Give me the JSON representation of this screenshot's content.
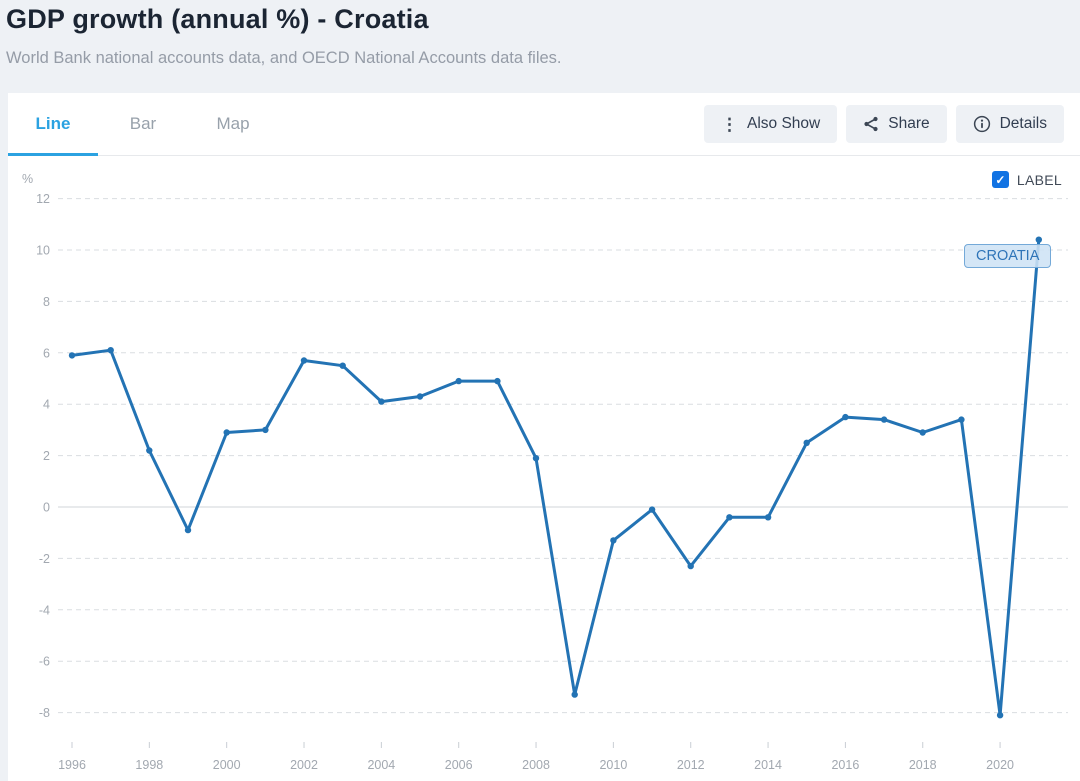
{
  "header": {
    "title": "GDP growth (annual %) - Croatia",
    "subtitle": "World Bank national accounts data, and OECD National Accounts data files."
  },
  "tabs": [
    {
      "label": "Line",
      "active": true
    },
    {
      "label": "Bar",
      "active": false
    },
    {
      "label": "Map",
      "active": false
    }
  ],
  "toolbar": {
    "also_show": "Also Show",
    "share": "Share",
    "details": "Details",
    "icons": {
      "also_show": "kebab-vertical-icon",
      "share": "share-nodes-icon",
      "details": "info-circle-icon"
    }
  },
  "legend": {
    "label": "LABEL",
    "checked": true,
    "check_icon": "checkmark"
  },
  "annotation": {
    "label": "CROATIA"
  },
  "colors": {
    "page_background": "#eef1f5",
    "card_background": "#ffffff",
    "tab_accent": "#2ba2e1",
    "button_background": "#eef1f5",
    "line": "#2373b4",
    "checkbox": "#1173e3",
    "annotation_fill": "#cee3f5",
    "annotation_border": "#74a9d8",
    "annotation_text": "#2e74b8",
    "grid": "#dadde1",
    "zero_line": "#d0d5da",
    "axis_text": "#a2a8b0"
  },
  "chart_data": {
    "type": "line",
    "title": "GDP growth (annual %) - Croatia",
    "unit_label": "%",
    "x": [
      1996,
      1997,
      1998,
      1999,
      2000,
      2001,
      2002,
      2003,
      2004,
      2005,
      2006,
      2007,
      2008,
      2009,
      2010,
      2011,
      2012,
      2013,
      2014,
      2015,
      2016,
      2017,
      2018,
      2019,
      2020,
      2021
    ],
    "series": [
      {
        "name": "Croatia",
        "values": [
          5.9,
          6.1,
          2.2,
          -0.9,
          2.9,
          3.0,
          5.7,
          5.5,
          4.1,
          4.3,
          4.9,
          4.9,
          1.9,
          -7.3,
          -1.3,
          -0.1,
          -2.3,
          -0.4,
          -0.4,
          2.5,
          3.5,
          3.4,
          2.9,
          3.4,
          -8.1,
          10.4
        ]
      }
    ],
    "ylim": [
      -8,
      12
    ],
    "ytick_step": 2,
    "yticks": [
      12,
      10,
      8,
      6,
      4,
      2,
      0,
      -2,
      -4,
      -6,
      -8
    ],
    "xticks": [
      1996,
      1998,
      2000,
      2002,
      2004,
      2006,
      2008,
      2010,
      2012,
      2014,
      2016,
      2018,
      2020
    ],
    "grid": "horizontal-dashed",
    "zero_line": "solid",
    "markers": true,
    "legend_position": "top-right"
  }
}
